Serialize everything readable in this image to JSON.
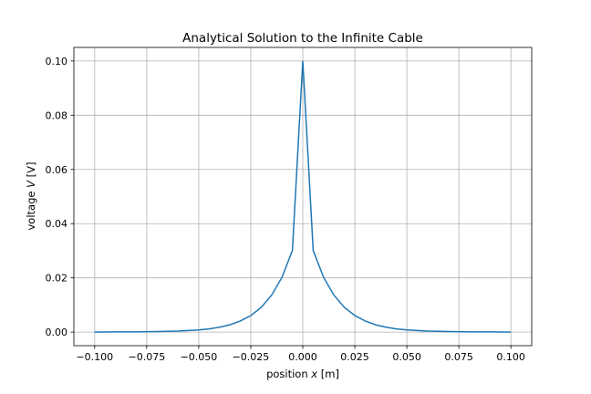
{
  "chart_data": {
    "type": "line",
    "title": "Analytical Solution to the Infinite Cable",
    "xlabel": {
      "pre": "position ",
      "var": "x",
      "post": " [m]"
    },
    "ylabel": {
      "pre": "voltage ",
      "var": "V",
      "post": " [V]"
    },
    "xlim": [
      -0.11,
      0.11
    ],
    "ylim": [
      -0.005,
      0.105
    ],
    "xticks": [
      -0.1,
      -0.075,
      -0.05,
      -0.025,
      0.0,
      0.025,
      0.05,
      0.075,
      0.1
    ],
    "xtick_labels": [
      "−0.100",
      "−0.075",
      "−0.050",
      "−0.025",
      "0.000",
      "0.025",
      "0.050",
      "0.075",
      "0.100"
    ],
    "yticks": [
      0.0,
      0.02,
      0.04,
      0.06,
      0.08,
      0.1
    ],
    "ytick_labels": [
      "0.00",
      "0.02",
      "0.04",
      "0.06",
      "0.08",
      "0.10"
    ],
    "grid": true,
    "line_color": "#1f77b4",
    "series": [
      {
        "x": [
          -0.1,
          -0.09,
          -0.08,
          -0.07,
          -0.06,
          -0.05,
          -0.045,
          -0.04,
          -0.035,
          -0.03,
          -0.025,
          -0.02,
          -0.015,
          -0.01,
          -0.005,
          0.0,
          0.005,
          0.01,
          0.015,
          0.02,
          0.025,
          0.03,
          0.035,
          0.04,
          0.045,
          0.05,
          0.06,
          0.07,
          0.08,
          0.09,
          0.1
        ],
        "values": [
          0.0,
          0.0001,
          0.0001,
          0.0002,
          0.0004,
          0.0008,
          0.0012,
          0.0018,
          0.0027,
          0.0041,
          0.0061,
          0.0091,
          0.0136,
          0.0202,
          0.0301,
          0.1,
          0.0301,
          0.0202,
          0.0136,
          0.0091,
          0.0061,
          0.0041,
          0.0027,
          0.0018,
          0.0012,
          0.0008,
          0.0004,
          0.0002,
          0.0001,
          0.0001,
          0.0
        ]
      }
    ]
  }
}
